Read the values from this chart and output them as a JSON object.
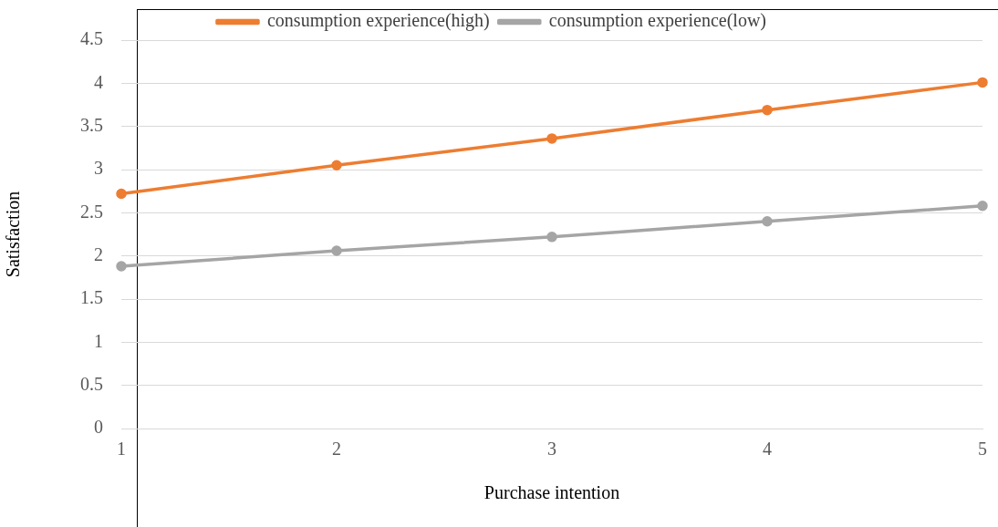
{
  "chart_data": {
    "type": "line",
    "xlabel": "Purchase intention",
    "ylabel": "Satisfaction",
    "categories": [
      "1",
      "2",
      "3",
      "4",
      "5"
    ],
    "series": [
      {
        "name": "consumption experience(high)",
        "color": "#ed7d31",
        "values": [
          2.72,
          3.05,
          3.36,
          3.69,
          4.01
        ]
      },
      {
        "name": "consumption experience(low)",
        "color": "#a5a5a5",
        "values": [
          1.88,
          2.06,
          2.22,
          2.4,
          2.58
        ]
      }
    ],
    "ylim": [
      0,
      4.5
    ],
    "yticks": [
      0,
      0.5,
      1,
      1.5,
      2,
      2.5,
      3,
      3.5,
      4,
      4.5
    ],
    "grid": "y",
    "legend": "top",
    "marker": "circle",
    "line_style": "solid"
  }
}
